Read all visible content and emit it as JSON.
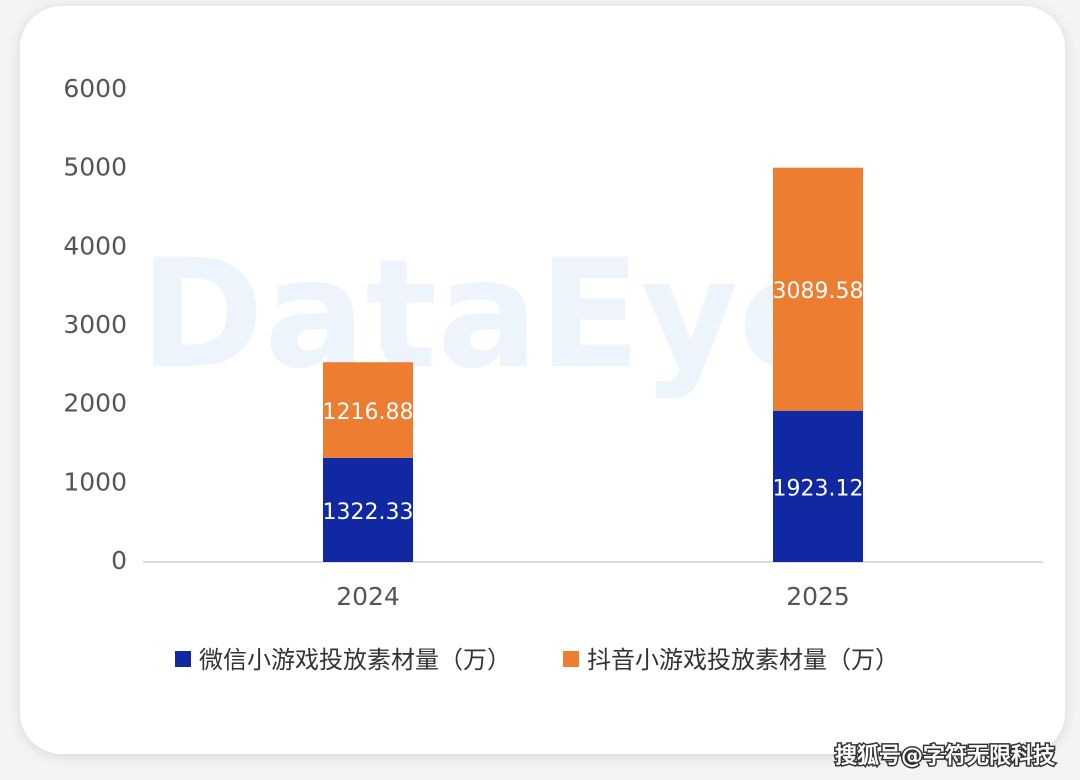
{
  "chart_data": {
    "type": "stacked_bar",
    "categories": [
      "2024",
      "2025"
    ],
    "series": [
      {
        "name": "微信小游戏投放素材量（万）",
        "color": "#1029a3",
        "values": [
          1322.33,
          1923.12
        ]
      },
      {
        "name": "抖音小游戏投放素材量（万）",
        "color": "#ed7d31",
        "values": [
          1216.88,
          3089.58
        ]
      }
    ],
    "ylim": [
      0,
      6000
    ],
    "yticks": [
      0,
      1000,
      2000,
      3000,
      4000,
      5000,
      6000
    ],
    "grid": false,
    "legend": "bottom",
    "watermark": "DataEye",
    "source": "搜狐号@字符无限科技"
  }
}
